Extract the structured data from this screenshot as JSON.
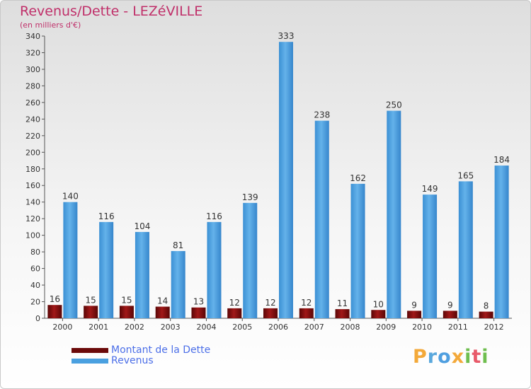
{
  "chart_data": {
    "type": "bar",
    "title": "Revenus/Dette - LEZéVILLE",
    "subtitle": "(en milliers d'€)",
    "categories": [
      "2000",
      "2001",
      "2002",
      "2003",
      "2004",
      "2005",
      "2006",
      "2007",
      "2008",
      "2009",
      "2010",
      "2011",
      "2012"
    ],
    "series": [
      {
        "name": "Montant de la Dette",
        "color": "#7a0c0c",
        "values": [
          16,
          15,
          15,
          14,
          13,
          12,
          12,
          12,
          11,
          10,
          9,
          9,
          8
        ]
      },
      {
        "name": "Revenus",
        "color": "#4aa0e0",
        "values": [
          140,
          116,
          104,
          81,
          116,
          139,
          333,
          238,
          162,
          250,
          149,
          165,
          184
        ]
      }
    ],
    "ylim": [
      0,
      340
    ],
    "yticks": [
      0,
      20,
      40,
      60,
      80,
      100,
      120,
      140,
      160,
      180,
      200,
      220,
      240,
      260,
      280,
      300,
      320,
      340
    ],
    "grid": false,
    "legend_position": "bottom-left",
    "data_labels": true
  },
  "watermark": "Proxiti"
}
